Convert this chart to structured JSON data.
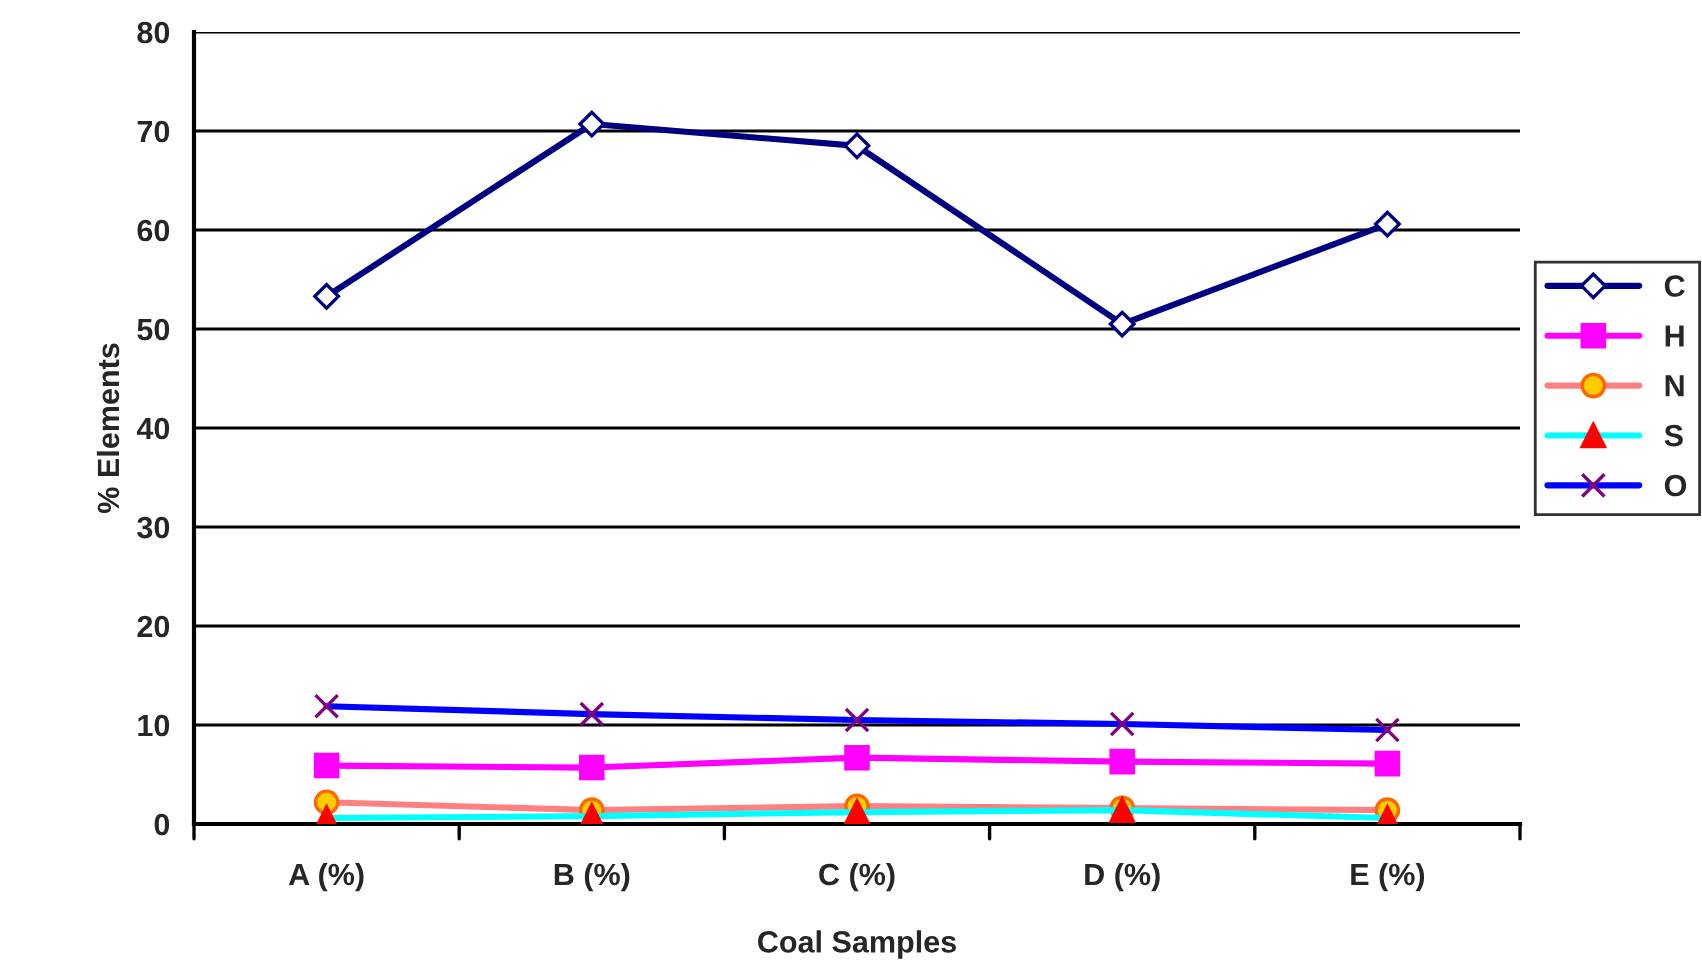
{
  "chart_data": {
    "type": "line",
    "xlabel": "Coal Samples",
    "ylabel": "% Elements",
    "categories": [
      "A (%)",
      "B (%)",
      "C (%)",
      "D (%)",
      "E (%)"
    ],
    "series": [
      {
        "name": "C",
        "color": "#000080",
        "marker": "diamond",
        "values": [
          53.3,
          70.7,
          68.5,
          50.5,
          60.6
        ]
      },
      {
        "name": "H",
        "color": "#ff00ff",
        "marker": "square",
        "values": [
          5.9,
          5.7,
          6.7,
          6.3,
          6.1
        ]
      },
      {
        "name": "N",
        "color": "#ff8080",
        "marker": "circle",
        "values": [
          2.2,
          1.4,
          1.8,
          1.6,
          1.4
        ]
      },
      {
        "name": "S",
        "color": "#00ffff",
        "marker": "triangle",
        "values": [
          0.6,
          0.8,
          1.2,
          1.4,
          0.6
        ]
      },
      {
        "name": "O",
        "color": "#0000ff",
        "marker": "cross",
        "values": [
          11.9,
          11.1,
          10.5,
          10.1,
          9.5
        ]
      }
    ],
    "ylim": [
      0,
      80
    ],
    "yticks": [
      0,
      10,
      20,
      30,
      40,
      50,
      60,
      70,
      80
    ],
    "grid": "y",
    "legend": "right",
    "line_style": "solid"
  }
}
